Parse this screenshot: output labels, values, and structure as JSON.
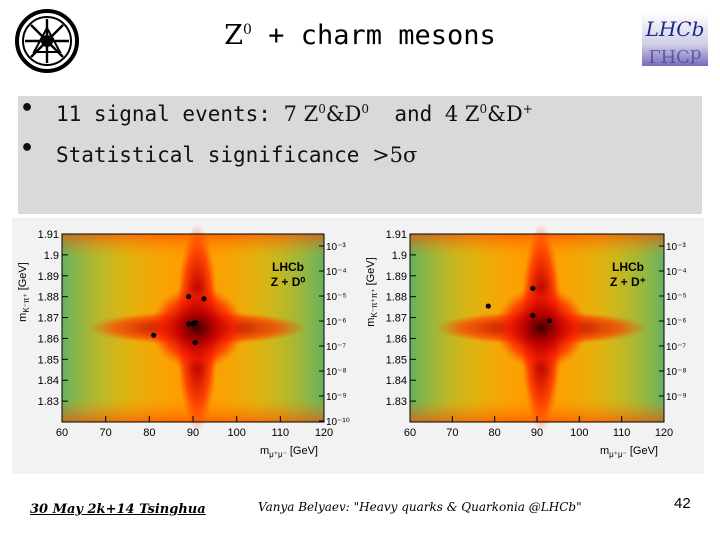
{
  "slide": {
    "title_prefix": "Z",
    "title_sup": "0",
    "title_rest": " + charm mesons",
    "logo_right_text": "LHCb",
    "bullet1": {
      "prefix": "11 signal events: ",
      "c1": "7 Z",
      "c1_sup": "0",
      "c1_mid": "&D",
      "c1_sup2": "0",
      "mid": "  and ",
      "c2": "4 Z",
      "c2_sup": "0",
      "c2_mid": "&D",
      "c2_sup2": "+"
    },
    "bullet2": {
      "prefix": "Statistical significance ",
      "value": ">5σ"
    },
    "footer_left": "30 May 2k+14 Tsinghua",
    "footer_mid": "Vanya Belyaev: \"Heavy quarks & Quarkonia @LHCb\"",
    "page_number": "42",
    "colors": {
      "band": "#d9d9d9",
      "plot_bg": "#f2f2f2"
    }
  },
  "chart_data": [
    {
      "type": "heatmap",
      "title": "",
      "xlabel": "m",
      "xlabel_sub": "μ⁺μ⁻",
      "xlabel_unit": "[GeV]",
      "ylabel": "m",
      "ylabel_sub": "K⁻π⁺",
      "ylabel_unit": "[GeV]",
      "xlim": [
        60,
        120
      ],
      "ylim": [
        1.82,
        1.91
      ],
      "x_ticks": [
        "60",
        "70",
        "80",
        "90",
        "100",
        "110",
        "120"
      ],
      "y_ticks": [
        "1.83",
        "1.84",
        "1.85",
        "1.86",
        "1.87",
        "1.88",
        "1.89",
        "1.9",
        "1.91"
      ],
      "z_scale": "log",
      "z_ticks": [
        "10⁻³",
        "10⁻⁴",
        "10⁻⁵",
        "10⁻⁶",
        "10⁻⁷",
        "10⁻⁸",
        "10⁻⁹",
        "10⁻¹⁰"
      ],
      "label_line1": "LHCb",
      "label_line2": "Z + D⁰",
      "points": [
        {
          "x": 89,
          "y": 1.88
        },
        {
          "x": 92.5,
          "y": 1.879
        },
        {
          "x": 89,
          "y": 1.867
        },
        {
          "x": 90,
          "y": 1.867
        },
        {
          "x": 90.5,
          "y": 1.8675
        },
        {
          "x": 81,
          "y": 1.8615
        },
        {
          "x": 90.5,
          "y": 1.858
        }
      ]
    },
    {
      "type": "heatmap",
      "title": "",
      "xlabel": "m",
      "xlabel_sub": "μ⁺μ⁻",
      "xlabel_unit": "[GeV]",
      "ylabel": "m",
      "ylabel_sub": "K⁻π⁺π⁺",
      "ylabel_unit": "[GeV]",
      "xlim": [
        60,
        120
      ],
      "ylim": [
        1.82,
        1.91
      ],
      "x_ticks": [
        "60",
        "70",
        "80",
        "90",
        "100",
        "110",
        "120"
      ],
      "y_ticks": [
        "1.83",
        "1.84",
        "1.85",
        "1.86",
        "1.87",
        "1.88",
        "1.89",
        "1.9",
        "1.91"
      ],
      "z_scale": "log",
      "z_ticks": [
        "10⁻³",
        "10⁻⁴",
        "10⁻⁵",
        "10⁻⁶",
        "10⁻⁷",
        "10⁻⁸",
        "10⁻⁹"
      ],
      "label_line1": "LHCb",
      "label_line2": "Z + D⁺",
      "points": [
        {
          "x": 89,
          "y": 1.884
        },
        {
          "x": 78.5,
          "y": 1.8755
        },
        {
          "x": 89,
          "y": 1.871
        },
        {
          "x": 93,
          "y": 1.8685
        }
      ]
    }
  ]
}
